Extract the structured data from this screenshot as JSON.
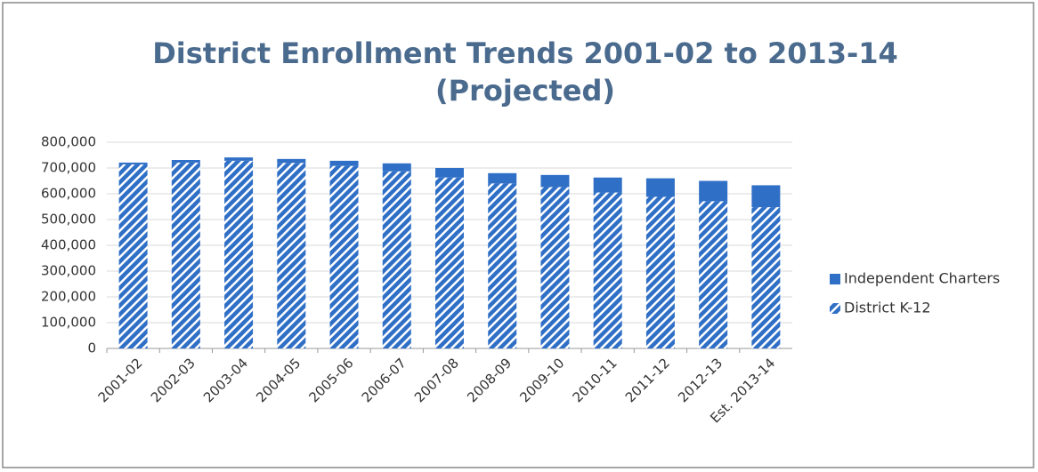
{
  "chart_data": {
    "type": "stacked_bar",
    "title": "District Enrollment Trends 2001-02 to 2013-14",
    "subtitle": "(Projected)",
    "categories": [
      "2001-02",
      "2002-03",
      "2003-04",
      "2004-05",
      "2005-06",
      "2006-07",
      "2007-08",
      "2008-09",
      "2009-10",
      "2010-11",
      "2011-12",
      "2012-13",
      "Est. 2013-14"
    ],
    "series": [
      {
        "name": "District K-12",
        "color": "#2f6fc6",
        "pattern": "hatch",
        "values": [
          714000,
          721000,
          728000,
          720000,
          708000,
          687000,
          663000,
          640000,
          626000,
          605000,
          588000,
          571000,
          548000
        ]
      },
      {
        "name": "Independent Charters",
        "color": "#2f6fc6",
        "pattern": "solid",
        "values": [
          7000,
          10000,
          13000,
          15000,
          20000,
          31000,
          37000,
          40000,
          47000,
          58000,
          72000,
          79000,
          85000
        ]
      }
    ],
    "ylim": [
      0,
      800000
    ],
    "yticks": [
      0,
      {
        "value": 100000,
        "label": "100,000"
      },
      {
        "value": 200000,
        "label": "200,000"
      },
      {
        "value": 300000,
        "label": "300,000"
      },
      {
        "value": 400000,
        "label": "400,000"
      },
      {
        "value": 500000,
        "label": "500,000"
      },
      {
        "value": 600000,
        "label": "600,000"
      },
      {
        "value": 700000,
        "label": "700,000"
      },
      {
        "value": 800000,
        "label": "800,000"
      }
    ],
    "grid": true,
    "legend": "right"
  }
}
